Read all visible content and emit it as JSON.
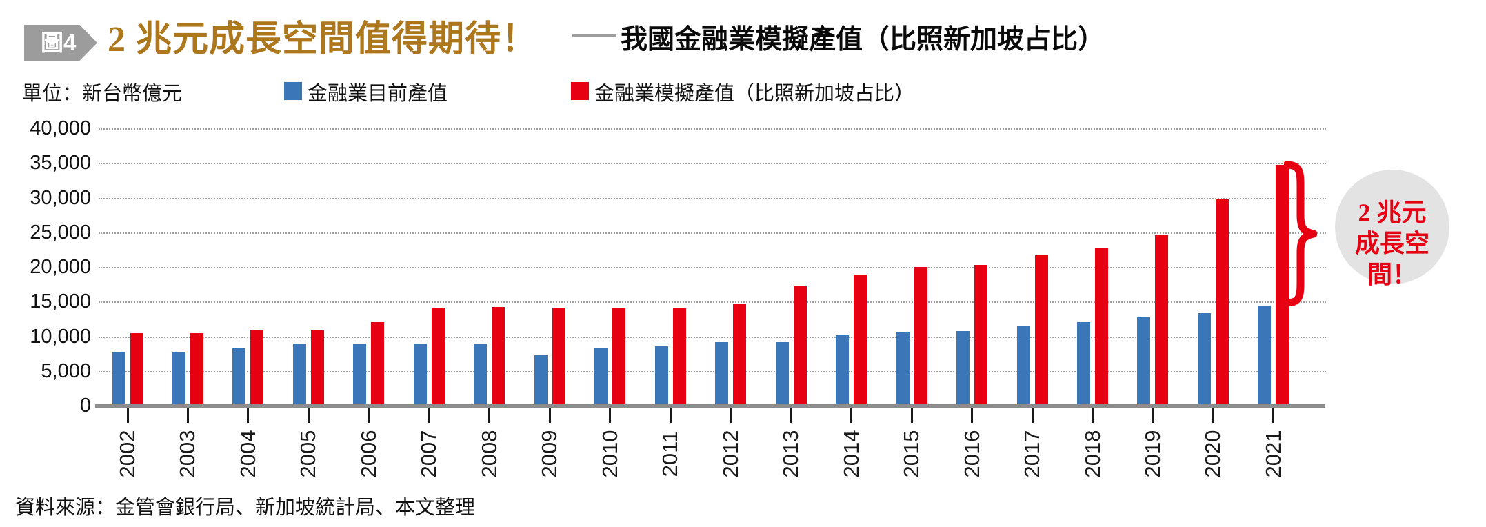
{
  "header": {
    "badge": "圖4",
    "title": "2 兆元成長空間值得期待！",
    "subtitle": "我國金融業模擬產值（比照新加坡占比）"
  },
  "unit_label": "單位：新台幣億元",
  "source": "資料來源：金管會銀行局、新加坡統計局、本文整理",
  "callout": {
    "line1": "2 兆元",
    "line2": "成長空間！"
  },
  "colors": {
    "current_blue": "#3a76b8",
    "simulated_red": "#e60012",
    "title_gold": "#ad771e",
    "badge_gray": "#9c9c9c",
    "circle_gray": "#e3e3e3",
    "axis_gray": "#8c8c8c"
  },
  "chart_data": {
    "type": "bar",
    "title": "我國金融業模擬產值（比照新加坡占比）",
    "xlabel": "",
    "ylabel": "單位：新台幣億元",
    "categories": [
      "2002",
      "2003",
      "2004",
      "2005",
      "2006",
      "2007",
      "2008",
      "2009",
      "2010",
      "2011",
      "2012",
      "2013",
      "2014",
      "2015",
      "2016",
      "2017",
      "2018",
      "2019",
      "2020",
      "2021"
    ],
    "series": [
      {
        "name": "金融業目前產值",
        "color": "#3a76b8",
        "values": [
          7900,
          7850,
          8400,
          9050,
          9050,
          9050,
          9050,
          7400,
          8500,
          8650,
          9300,
          9250,
          10200,
          10750,
          10800,
          11650,
          12150,
          12800,
          13450,
          14500
        ]
      },
      {
        "name": "金融業模擬產值（比照新加坡占比）",
        "color": "#e60012",
        "values": [
          10500,
          10500,
          10900,
          10900,
          12100,
          14250,
          14300,
          14200,
          14200,
          14150,
          14800,
          17300,
          19000,
          20100,
          20400,
          21800,
          22750,
          24700,
          29900,
          34800
        ]
      }
    ],
    "ylim": [
      0,
      40000
    ],
    "ytick_interval": 5000,
    "ytick_labels": [
      "0",
      "5,000",
      "10,000",
      "15,000",
      "20,000",
      "25,000",
      "30,000",
      "35,000",
      "40,000"
    ],
    "grid": "horizontal dotted",
    "legend_position": "top",
    "annotation": "2 兆元成長空間！（2021 年紅柱與藍柱差距之大括號標註）"
  }
}
